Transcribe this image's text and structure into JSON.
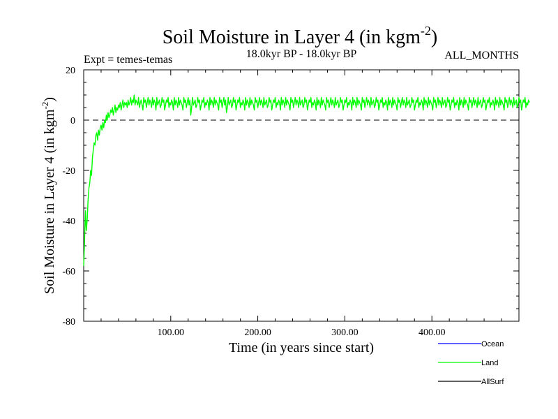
{
  "chart_data": {
    "type": "line",
    "title": "Soil Moisture in Layer 4 (in kgm",
    "title_sup": "-2",
    "title_close": ")",
    "subtitle_left": "Expt = temes-temas",
    "subtitle_center": "18.0kyr BP - 18.0kyr BP",
    "subtitle_right": "ALL_MONTHS",
    "xlabel": "Time (in years since start)",
    "ylabel": "Soil Moisture in Layer 4 (in kgm",
    "ylabel_sup": "-2",
    "ylabel_close": ")",
    "xlim": [
      0,
      500
    ],
    "ylim": [
      -80,
      20
    ],
    "x_ticks": [
      100,
      200,
      300,
      400
    ],
    "x_tick_labels": [
      "100.00",
      "200.00",
      "300.00",
      "400.00"
    ],
    "y_ticks": [
      -80,
      -60,
      -40,
      -20,
      0,
      20
    ],
    "y_tick_labels": [
      "-80",
      "-60",
      "-40",
      "-20",
      "0",
      "20"
    ],
    "zero_line": 0,
    "legend_position": "bottom-right",
    "series": [
      {
        "name": "Ocean",
        "color": "#0000ff",
        "values": []
      },
      {
        "name": "Land",
        "color": "#00ff00",
        "x_start": 0,
        "x_step": 1,
        "values": [
          -58,
          -48,
          -36,
          -44,
          -40,
          -32,
          -27,
          -25,
          -20,
          -22,
          -15,
          -12,
          -9,
          -10,
          -6,
          -5,
          -8,
          -4,
          -6,
          -3,
          -2,
          -4,
          -1,
          -3,
          0,
          -1,
          2,
          0,
          3,
          1,
          2,
          4,
          3,
          5,
          2,
          4,
          6,
          3,
          5,
          4,
          6,
          5,
          7,
          4,
          6,
          8,
          5,
          7,
          6,
          7,
          5,
          8,
          6,
          7,
          9,
          6,
          8,
          7,
          10,
          6,
          8,
          7,
          6,
          9,
          5,
          7,
          8,
          6,
          4,
          9,
          7,
          8,
          5,
          7,
          9,
          6,
          8,
          7,
          5,
          9,
          6,
          8,
          7,
          4,
          9,
          6,
          7,
          8,
          5,
          6,
          9,
          7,
          8,
          4,
          6,
          8,
          7,
          9,
          5,
          7,
          6,
          8,
          7,
          4,
          9,
          6,
          8,
          7,
          5,
          9,
          6,
          8,
          7,
          6,
          4,
          9,
          7,
          8,
          5,
          7,
          9,
          6,
          8,
          2,
          5,
          9,
          6,
          7,
          8,
          5,
          6,
          9,
          7,
          8,
          4,
          6,
          8,
          7,
          9,
          5,
          7,
          6,
          8,
          7,
          4,
          9,
          6,
          8,
          7,
          5,
          9,
          6,
          8,
          7,
          6,
          4,
          9,
          7,
          8,
          5,
          7,
          9,
          6,
          8,
          3,
          5,
          9,
          6,
          7,
          8,
          5,
          6,
          9,
          7,
          8,
          4,
          6,
          8,
          7,
          9,
          5,
          7,
          6,
          8,
          7,
          4,
          9,
          6,
          8,
          7,
          5,
          9,
          6,
          8,
          7,
          6,
          4,
          9,
          7,
          8,
          5,
          7,
          9,
          6,
          8,
          7,
          5,
          9,
          6,
          7,
          8,
          5,
          6,
          9,
          7,
          8,
          4,
          6,
          8,
          7,
          9,
          5,
          7,
          6,
          8,
          7,
          4,
          9,
          6,
          8,
          7,
          5,
          9,
          6,
          8,
          7,
          6,
          4,
          9,
          7,
          8,
          5,
          7,
          9,
          6,
          8,
          7,
          5,
          9,
          6,
          7,
          8,
          5,
          6,
          9,
          7,
          8,
          4,
          6,
          8,
          7,
          9,
          5,
          7,
          6,
          8,
          7,
          4,
          9,
          6,
          8,
          7,
          5,
          9,
          6,
          8,
          7,
          6,
          4,
          9,
          7,
          8,
          5,
          7,
          9,
          6,
          8,
          7,
          5,
          9,
          6,
          7,
          8,
          5,
          6,
          9,
          7,
          8,
          4,
          6,
          8,
          7,
          9,
          5,
          7,
          6,
          8,
          7,
          4,
          9,
          6,
          8,
          7,
          5,
          9,
          6,
          8,
          7,
          6,
          4,
          9,
          7,
          8,
          5,
          7,
          9,
          6,
          8,
          7,
          5,
          9,
          6,
          7,
          8,
          5,
          6,
          9,
          7,
          8,
          4,
          6,
          8,
          7,
          9,
          5,
          7,
          6,
          8,
          7,
          4,
          9,
          6,
          8,
          7,
          5,
          9,
          6,
          8,
          7,
          6,
          4,
          9,
          7,
          8,
          5,
          7,
          9,
          6,
          8,
          7,
          5,
          9,
          6,
          7,
          8,
          5,
          6,
          9,
          7,
          8,
          4,
          6,
          8,
          7,
          9,
          5,
          7,
          6,
          8,
          7,
          4,
          9,
          6,
          8,
          7,
          5,
          9,
          6,
          8,
          7,
          6,
          4,
          9,
          7,
          8,
          5,
          7,
          9,
          6,
          8,
          7,
          5,
          9,
          6,
          7,
          8,
          5,
          6,
          9,
          7,
          8,
          4,
          6,
          8,
          7,
          9,
          5,
          7,
          6,
          8,
          7,
          4,
          9,
          6,
          8,
          7,
          5,
          9,
          6,
          8,
          7,
          6,
          4,
          9,
          7,
          8,
          5,
          7,
          9,
          6,
          8,
          7,
          5,
          9,
          6,
          7,
          8,
          5,
          6,
          9,
          7,
          8,
          4,
          6,
          8,
          7,
          9,
          5,
          7,
          6,
          8,
          7,
          4,
          9,
          6,
          8,
          7,
          5,
          9,
          6,
          8,
          7,
          6,
          4,
          9,
          7,
          8,
          5,
          7,
          9,
          6,
          8,
          7,
          5,
          9,
          6,
          7,
          8,
          5,
          6,
          9,
          7,
          8,
          4,
          6,
          8,
          7,
          9,
          5,
          7,
          6,
          8,
          7
        ]
      },
      {
        "name": "AllSurf",
        "color": "#000000",
        "values": []
      }
    ]
  }
}
